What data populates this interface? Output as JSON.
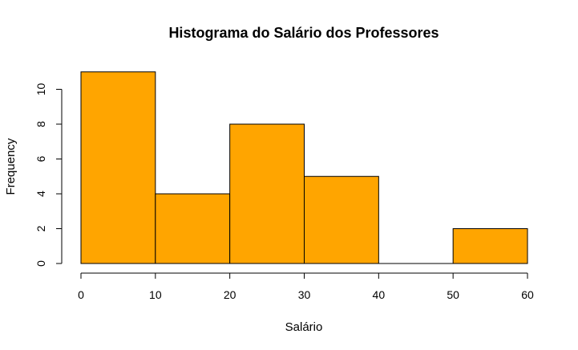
{
  "chart_data": {
    "type": "bar",
    "title": "Histograma do Salário dos Professores",
    "xlabel": "Salário",
    "ylabel": "Frequency",
    "bins": [
      {
        "from": 0,
        "to": 10,
        "count": 11
      },
      {
        "from": 10,
        "to": 20,
        "count": 4
      },
      {
        "from": 20,
        "to": 30,
        "count": 8
      },
      {
        "from": 30,
        "to": 40,
        "count": 5
      },
      {
        "from": 40,
        "to": 50,
        "count": 0
      },
      {
        "from": 50,
        "to": 60,
        "count": 2
      }
    ],
    "xlim": [
      0,
      60
    ],
    "ylim": [
      0,
      11
    ],
    "xticks": [
      0,
      10,
      20,
      30,
      40,
      50,
      60
    ],
    "yticks": [
      0,
      2,
      4,
      6,
      8,
      10
    ],
    "bar_color": "#FFA500",
    "grid": false
  }
}
